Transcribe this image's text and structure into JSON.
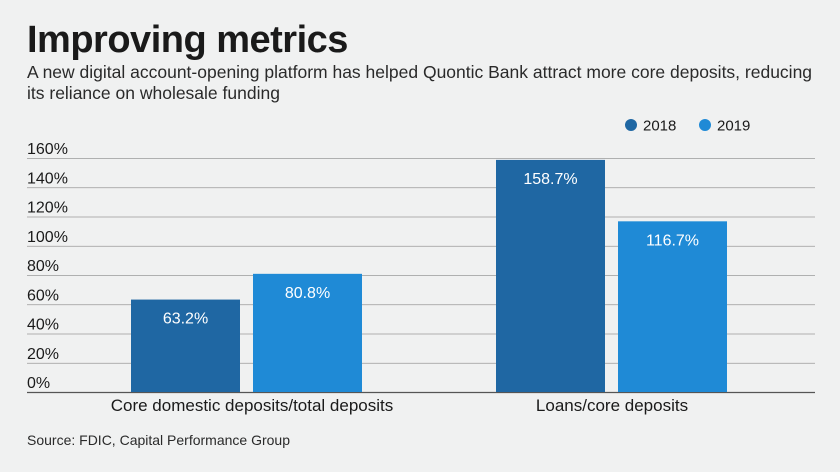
{
  "title": "Improving metrics",
  "subtitle": "A new digital account-opening platform has helped Quontic Bank attract more core deposits, reducing its reliance on wholesale funding",
  "source": "Source: FDIC, Capital Performance Group",
  "colors": {
    "series_2018": "#1f67a3",
    "series_2019": "#1f8ad6",
    "background": "#f0f1f1"
  },
  "chart_data": {
    "type": "bar",
    "title": "Improving metrics",
    "categories": [
      "Core domestic deposits/total deposits",
      "Loans/core deposits"
    ],
    "series": [
      {
        "name": "2018",
        "values": [
          63.2,
          158.7
        ],
        "labels": [
          "63.2%",
          "158.7%"
        ]
      },
      {
        "name": "2019",
        "values": [
          80.8,
          116.7
        ],
        "labels": [
          "80.8%",
          "116.7%"
        ]
      }
    ],
    "ylim": [
      0,
      160
    ],
    "yticks": [
      0,
      20,
      40,
      60,
      80,
      100,
      120,
      140,
      160
    ],
    "ytick_labels": [
      "0%",
      "20%",
      "40%",
      "60%",
      "80%",
      "100%",
      "120%",
      "140%",
      "160%"
    ],
    "xlabel": "",
    "ylabel": "",
    "legend": "top-right",
    "grid": true
  }
}
